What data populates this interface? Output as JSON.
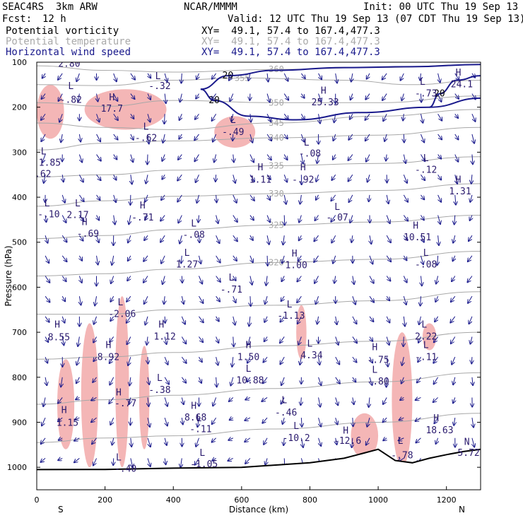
{
  "header": {
    "model": "SEAC4RS  3km ARW",
    "center": "NCAR/MMMM",
    "init": "Init: 00 UTC Thu 19 Sep 13",
    "fcst_label": "Fcst:",
    "fcst_value": "12 h",
    "valid": "Valid: 12 UTC Thu 19 Sep 13 (07 CDT Thu 19 Sep 13)",
    "fields": [
      {
        "name": "Potential vorticity",
        "xy": "XY=  49.1, 57.4 to 167.4,477.3",
        "color": "#000000"
      },
      {
        "name": "Potential temperature",
        "xy": "XY=  49.1, 57.4 to 167.4,477.3",
        "color": "#aaaaaa"
      },
      {
        "name": "Horizontal wind speed",
        "xy": "XY=  49.1, 57.4 to 167.4,477.3",
        "color": "#1a1a8c"
      }
    ]
  },
  "colors": {
    "pv_positive_fill": "#f4b6b6",
    "pv_contour": "#4a0f3c",
    "theta_contour": "#a8a8a8",
    "wind_contour": "#1a1a8c",
    "wind_vector": "#1a1a8c",
    "terrain": "#000000"
  },
  "chart_data": {
    "type": "cross-section",
    "xlabel": "Distance (km)",
    "ylabel": "Pressure (hPa)",
    "xlim": [
      0,
      1300
    ],
    "ylim": [
      1050,
      100
    ],
    "x_ticks": [
      0,
      200,
      400,
      600,
      800,
      1000,
      1200
    ],
    "y_ticks": [
      100,
      200,
      300,
      400,
      500,
      600,
      700,
      800,
      900,
      1000
    ],
    "x_end_labels": {
      "left": "S",
      "right": "N"
    },
    "theta_contours": [
      {
        "label": "360",
        "points": [
          [
            0,
            108
          ],
          [
            200,
            118
          ],
          [
            400,
            122
          ],
          [
            700,
            116
          ],
          [
            1000,
            112
          ],
          [
            1300,
            105
          ]
        ]
      },
      {
        "label": "355",
        "points": [
          [
            0,
            150
          ],
          [
            200,
            152
          ],
          [
            400,
            140
          ],
          [
            600,
            135
          ],
          [
            900,
            140
          ],
          [
            1100,
            150
          ],
          [
            1300,
            140
          ]
        ]
      },
      {
        "label": "350",
        "points": [
          [
            0,
            190
          ],
          [
            200,
            198
          ],
          [
            400,
            185
          ],
          [
            700,
            190
          ],
          [
            1000,
            190
          ],
          [
            1300,
            175
          ]
        ]
      },
      {
        "label": "345",
        "points": [
          [
            0,
            235
          ],
          [
            200,
            245
          ],
          [
            400,
            250
          ],
          [
            700,
            235
          ],
          [
            1000,
            220
          ],
          [
            1300,
            205
          ]
        ]
      },
      {
        "label": "340",
        "points": [
          [
            0,
            295
          ],
          [
            200,
            280
          ],
          [
            400,
            275
          ],
          [
            700,
            268
          ],
          [
            1000,
            262
          ],
          [
            1300,
            245
          ]
        ]
      },
      {
        "label": "335",
        "points": [
          [
            0,
            355
          ],
          [
            200,
            350
          ],
          [
            400,
            340
          ],
          [
            700,
            330
          ],
          [
            1000,
            325
          ],
          [
            1300,
            310
          ]
        ]
      },
      {
        "label": "330",
        "points": [
          [
            0,
            420
          ],
          [
            200,
            408
          ],
          [
            400,
            398
          ],
          [
            700,
            392
          ],
          [
            1000,
            385
          ],
          [
            1300,
            370
          ]
        ]
      },
      {
        "label": "325",
        "points": [
          [
            0,
            492
          ],
          [
            200,
            485
          ],
          [
            400,
            472
          ],
          [
            700,
            462
          ],
          [
            1000,
            455
          ],
          [
            1300,
            440
          ]
        ]
      },
      {
        "label": "320",
        "points": [
          [
            0,
            575
          ],
          [
            200,
            570
          ],
          [
            400,
            560
          ],
          [
            700,
            545
          ],
          [
            1000,
            538
          ],
          [
            1300,
            520
          ]
        ]
      },
      {
        "label": "",
        "points": [
          [
            0,
            660
          ],
          [
            200,
            660
          ],
          [
            400,
            650
          ],
          [
            700,
            640
          ],
          [
            1000,
            630
          ],
          [
            1300,
            610
          ]
        ]
      },
      {
        "label": "",
        "points": [
          [
            0,
            760
          ],
          [
            200,
            755
          ],
          [
            400,
            745
          ],
          [
            700,
            730
          ],
          [
            1000,
            720
          ],
          [
            1300,
            700
          ]
        ]
      },
      {
        "label": "",
        "points": [
          [
            0,
            860
          ],
          [
            200,
            850
          ],
          [
            400,
            840
          ],
          [
            700,
            825
          ],
          [
            1000,
            810
          ],
          [
            1300,
            790
          ]
        ]
      },
      {
        "label": "",
        "points": [
          [
            0,
            945
          ],
          [
            200,
            935
          ],
          [
            400,
            930
          ],
          [
            700,
            915
          ],
          [
            1000,
            900
          ],
          [
            1300,
            880
          ]
        ]
      }
    ],
    "wind_speed_contours": [
      {
        "label": "20",
        "points": [
          [
            480,
            160
          ],
          [
            560,
            130
          ],
          [
            700,
            118
          ],
          [
            900,
            112
          ],
          [
            1100,
            110
          ],
          [
            1300,
            105
          ]
        ]
      },
      {
        "label": "20",
        "points": [
          [
            480,
            160
          ],
          [
            520,
            185
          ],
          [
            620,
            220
          ],
          [
            760,
            228
          ],
          [
            950,
            212
          ],
          [
            1150,
            200
          ],
          [
            1300,
            180
          ]
        ]
      },
      {
        "label": "20",
        "points": [
          [
            1150,
            200
          ],
          [
            1180,
            170
          ],
          [
            1230,
            140
          ],
          [
            1300,
            130
          ]
        ]
      }
    ],
    "terrain": [
      [
        0,
        1005
      ],
      [
        200,
        1005
      ],
      [
        400,
        1002
      ],
      [
        600,
        1000
      ],
      [
        700,
        995
      ],
      [
        800,
        990
      ],
      [
        900,
        980
      ],
      [
        950,
        970
      ],
      [
        1000,
        960
      ],
      [
        1050,
        985
      ],
      [
        1100,
        990
      ],
      [
        1150,
        980
      ],
      [
        1200,
        972
      ],
      [
        1250,
        965
      ],
      [
        1300,
        960
      ]
    ],
    "pv_regions": [
      {
        "x": [
          0,
          80
        ],
        "p": [
          150,
          270
        ]
      },
      {
        "x": [
          140,
          380
        ],
        "p": [
          160,
          250
        ]
      },
      {
        "x": [
          520,
          640
        ],
        "p": [
          220,
          290
        ]
      },
      {
        "x": [
          60,
          110
        ],
        "p": [
          760,
          960
        ]
      },
      {
        "x": [
          130,
          180
        ],
        "p": [
          680,
          1000
        ]
      },
      {
        "x": [
          230,
          270
        ],
        "p": [
          620,
          1000
        ]
      },
      {
        "x": [
          300,
          330
        ],
        "p": [
          730,
          960
        ]
      },
      {
        "x": [
          760,
          790
        ],
        "p": [
          640,
          760
        ]
      },
      {
        "x": [
          920,
          1000
        ],
        "p": [
          880,
          980
        ]
      },
      {
        "x": [
          1040,
          1100
        ],
        "p": [
          700,
          1000
        ]
      },
      {
        "x": [
          1130,
          1170
        ],
        "p": [
          680,
          740
        ]
      }
    ],
    "annotations": [
      {
        "text": "2.80",
        "x": 95,
        "p": 110
      },
      {
        "text": "L",
        "x": 100,
        "p": 160
      },
      {
        "text": "-.82",
        "x": 100,
        "p": 190
      },
      {
        "text": "L",
        "x": 355,
        "p": 138
      },
      {
        "text": "-.32",
        "x": 360,
        "p": 160
      },
      {
        "text": "H",
        "x": 220,
        "p": 185
      },
      {
        "text": "17.7",
        "x": 220,
        "p": 210
      },
      {
        "text": "L",
        "x": 320,
        "p": 250
      },
      {
        "text": "-.62",
        "x": 320,
        "p": 275
      },
      {
        "text": "L",
        "x": 575,
        "p": 235
      },
      {
        "text": "-.49",
        "x": 575,
        "p": 262
      },
      {
        "text": "H",
        "x": 840,
        "p": 170
      },
      {
        "text": "25.33",
        "x": 845,
        "p": 196
      },
      {
        "text": "L",
        "x": 790,
        "p": 285
      },
      {
        "text": "-.08",
        "x": 800,
        "p": 310
      },
      {
        "text": "L",
        "x": 1130,
        "p": 150
      },
      {
        "text": "-.73",
        "x": 1140,
        "p": 176
      },
      {
        "text": "H",
        "x": 1235,
        "p": 130
      },
      {
        "text": "24.1",
        "x": 1245,
        "p": 156
      },
      {
        "text": "L",
        "x": 20,
        "p": 305
      },
      {
        "text": "-1.85",
        "x": 30,
        "p": 330
      },
      {
        "text": "-.62",
        "x": 10,
        "p": 355
      },
      {
        "text": "H",
        "x": 655,
        "p": 340
      },
      {
        "text": "1.11",
        "x": 655,
        "p": 368
      },
      {
        "text": "H",
        "x": 780,
        "p": 340
      },
      {
        "text": "-.92",
        "x": 780,
        "p": 368
      },
      {
        "text": "L",
        "x": 1140,
        "p": 320
      },
      {
        "text": "-.12",
        "x": 1140,
        "p": 346
      },
      {
        "text": "H",
        "x": 1235,
        "p": 368
      },
      {
        "text": "1.31",
        "x": 1240,
        "p": 394
      },
      {
        "text": "L",
        "x": 30,
        "p": 420
      },
      {
        "text": "-.10",
        "x": 35,
        "p": 445
      },
      {
        "text": "L",
        "x": 120,
        "p": 420
      },
      {
        "text": "2.17",
        "x": 120,
        "p": 446
      },
      {
        "text": "H",
        "x": 140,
        "p": 462
      },
      {
        "text": "-.69",
        "x": 150,
        "p": 488
      },
      {
        "text": "H",
        "x": 310,
        "p": 425
      },
      {
        "text": "-.71",
        "x": 310,
        "p": 452
      },
      {
        "text": "L",
        "x": 460,
        "p": 465
      },
      {
        "text": "-.08",
        "x": 460,
        "p": 490
      },
      {
        "text": "L",
        "x": 880,
        "p": 428
      },
      {
        "text": "-.07",
        "x": 880,
        "p": 452
      },
      {
        "text": "H",
        "x": 1110,
        "p": 470
      },
      {
        "text": "10.51",
        "x": 1115,
        "p": 496
      },
      {
        "text": "H",
        "x": 755,
        "p": 532
      },
      {
        "text": "1.00",
        "x": 760,
        "p": 558
      },
      {
        "text": "L",
        "x": 440,
        "p": 530
      },
      {
        "text": "1.27",
        "x": 440,
        "p": 556
      },
      {
        "text": "L",
        "x": 1140,
        "p": 530
      },
      {
        "text": "-.08",
        "x": 1140,
        "p": 556
      },
      {
        "text": "L",
        "x": 570,
        "p": 585
      },
      {
        "text": "-.71",
        "x": 570,
        "p": 612
      },
      {
        "text": "L",
        "x": 245,
        "p": 640
      },
      {
        "text": "-2.06",
        "x": 250,
        "p": 666
      },
      {
        "text": "L",
        "x": 740,
        "p": 645
      },
      {
        "text": "-1.13",
        "x": 745,
        "p": 670
      },
      {
        "text": "H",
        "x": 60,
        "p": 690
      },
      {
        "text": "8.55",
        "x": 65,
        "p": 718
      },
      {
        "text": "H",
        "x": 365,
        "p": 690
      },
      {
        "text": "1.12",
        "x": 375,
        "p": 716
      },
      {
        "text": "L",
        "x": 1135,
        "p": 690
      },
      {
        "text": "2.22",
        "x": 1140,
        "p": 716
      },
      {
        "text": "L",
        "x": 800,
        "p": 732
      },
      {
        "text": "4.34",
        "x": 805,
        "p": 758
      },
      {
        "text": "L",
        "x": 1140,
        "p": 735
      },
      {
        "text": "-.11",
        "x": 1140,
        "p": 762
      },
      {
        "text": "H",
        "x": 210,
        "p": 735
      },
      {
        "text": "8.92",
        "x": 210,
        "p": 762
      },
      {
        "text": "H",
        "x": 620,
        "p": 735
      },
      {
        "text": "1.50",
        "x": 620,
        "p": 762
      },
      {
        "text": "H",
        "x": 990,
        "p": 740
      },
      {
        "text": "-.75",
        "x": 1000,
        "p": 768
      },
      {
        "text": "L",
        "x": 620,
        "p": 788
      },
      {
        "text": "10.88",
        "x": 625,
        "p": 814
      },
      {
        "text": "L",
        "x": 990,
        "p": 790
      },
      {
        "text": "-.80",
        "x": 1000,
        "p": 816
      },
      {
        "text": "L",
        "x": 360,
        "p": 808
      },
      {
        "text": "-.38",
        "x": 360,
        "p": 835
      },
      {
        "text": "H",
        "x": 240,
        "p": 840
      },
      {
        "text": "-.77",
        "x": 260,
        "p": 865
      },
      {
        "text": "L",
        "x": 725,
        "p": 858
      },
      {
        "text": "-.46",
        "x": 730,
        "p": 885
      },
      {
        "text": "H",
        "x": 80,
        "p": 880
      },
      {
        "text": "1.15",
        "x": 90,
        "p": 908
      },
      {
        "text": "H",
        "x": 460,
        "p": 870
      },
      {
        "text": "8.68",
        "x": 465,
        "p": 896
      },
      {
        "text": "L",
        "x": 475,
        "p": 898
      },
      {
        "text": "-.11",
        "x": 480,
        "p": 922
      },
      {
        "text": "H",
        "x": 1170,
        "p": 898
      },
      {
        "text": "18.63",
        "x": 1180,
        "p": 924
      },
      {
        "text": "L",
        "x": 760,
        "p": 915
      },
      {
        "text": "-10.2",
        "x": 760,
        "p": 942
      },
      {
        "text": "H",
        "x": 905,
        "p": 925
      },
      {
        "text": "-12.6",
        "x": 910,
        "p": 948
      },
      {
        "text": "L",
        "x": 1065,
        "p": 948
      },
      {
        "text": "-.78",
        "x": 1070,
        "p": 980
      },
      {
        "text": "N",
        "x": 1260,
        "p": 950
      },
      {
        "text": "5.72",
        "x": 1265,
        "p": 975
      },
      {
        "text": "L",
        "x": 240,
        "p": 985
      },
      {
        "text": "-.40",
        "x": 260,
        "p": 1010
      },
      {
        "text": "L",
        "x": 485,
        "p": 975
      },
      {
        "text": "-1.05",
        "x": 490,
        "p": 1000
      }
    ]
  }
}
